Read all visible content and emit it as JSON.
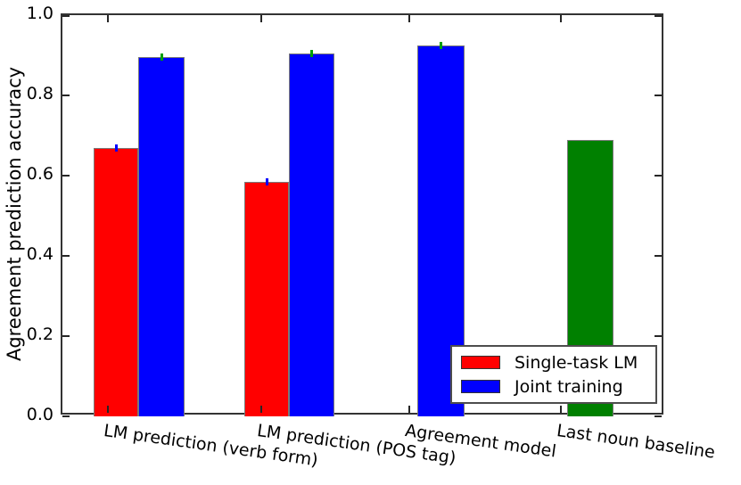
{
  "figure": {
    "background": "#ffffff",
    "spine_color": "#333333"
  },
  "chart_data": {
    "type": "bar",
    "title": "",
    "xlabel": "",
    "ylabel": "Agreement prediction accuracy",
    "ylim": [
      0.0,
      1.0
    ],
    "yticks": [
      "0.0",
      "0.2",
      "0.4",
      "0.6",
      "0.8",
      "1.0"
    ],
    "grid": false,
    "categories": [
      "LM prediction (verb form)",
      "LM prediction (POS tag)",
      "Agreement model",
      "Last noun baseline"
    ],
    "series": [
      {
        "name": "Single-task LM",
        "color": "#ff0000",
        "values": [
          0.67,
          0.585,
          null,
          null
        ],
        "yerr": 0.006,
        "yerr_color": "#0000ff"
      },
      {
        "name": "Joint training",
        "color": "#0000ff",
        "values": [
          0.895,
          0.905,
          0.925,
          null
        ],
        "yerr": 0.006,
        "yerr_color": "#00a000"
      },
      {
        "name": "Last noun baseline",
        "color": "#008000",
        "values": [
          null,
          null,
          null,
          0.69
        ],
        "yerr": null,
        "yerr_color": null
      }
    ],
    "legend": {
      "position": "lower right",
      "entries": [
        {
          "label": "Single-task LM",
          "color": "#ff0000"
        },
        {
          "label": "Joint training",
          "color": "#0000ff"
        }
      ]
    }
  }
}
